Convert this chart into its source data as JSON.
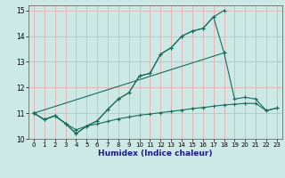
{
  "xlabel": "Humidex (Indice chaleur)",
  "xlim": [
    -0.5,
    23.5
  ],
  "ylim": [
    10,
    15.2
  ],
  "xticks": [
    0,
    1,
    2,
    3,
    4,
    5,
    6,
    7,
    8,
    9,
    10,
    11,
    12,
    13,
    14,
    15,
    16,
    17,
    18,
    19,
    20,
    21,
    22,
    23
  ],
  "yticks": [
    10,
    11,
    12,
    13,
    14,
    15
  ],
  "bg_color": "#cce9e5",
  "grid_color": "#e8b0b0",
  "line_color": "#1a6b5a",
  "lines": [
    {
      "x": [
        0,
        1,
        2,
        3,
        4,
        5,
        6,
        7,
        8,
        9,
        10,
        11,
        12,
        13,
        14,
        15,
        16,
        17,
        18
      ],
      "y": [
        11.0,
        10.75,
        10.9,
        10.6,
        10.2,
        10.5,
        10.7,
        11.15,
        11.55,
        11.8,
        12.45,
        12.55,
        13.3,
        13.55,
        14.0,
        14.2,
        14.3,
        14.75,
        15.0
      ]
    },
    {
      "x": [
        0,
        1,
        2,
        3,
        4,
        5,
        6,
        7,
        8,
        9,
        10,
        11,
        12,
        13,
        14,
        15,
        16,
        17,
        18
      ],
      "y": [
        11.0,
        10.75,
        10.9,
        10.6,
        10.2,
        10.5,
        10.7,
        11.15,
        11.55,
        11.8,
        12.45,
        12.55,
        13.3,
        13.55,
        14.0,
        14.2,
        14.3,
        14.75,
        13.35
      ]
    },
    {
      "x": [
        0,
        18,
        19,
        20,
        21,
        22,
        23
      ],
      "y": [
        11.0,
        13.35,
        11.55,
        11.62,
        11.55,
        11.1,
        11.2
      ]
    },
    {
      "x": [
        0,
        1,
        2,
        3,
        4,
        5,
        6,
        7,
        8,
        9,
        10,
        11,
        12,
        13,
        14,
        15,
        16,
        17,
        18,
        19,
        20,
        21,
        22,
        23
      ],
      "y": [
        11.0,
        10.75,
        10.9,
        10.6,
        10.35,
        10.5,
        10.58,
        10.68,
        10.78,
        10.85,
        10.92,
        10.97,
        11.02,
        11.07,
        11.12,
        11.18,
        11.22,
        11.27,
        11.32,
        11.35,
        11.38,
        11.38,
        11.1,
        11.2
      ]
    }
  ]
}
